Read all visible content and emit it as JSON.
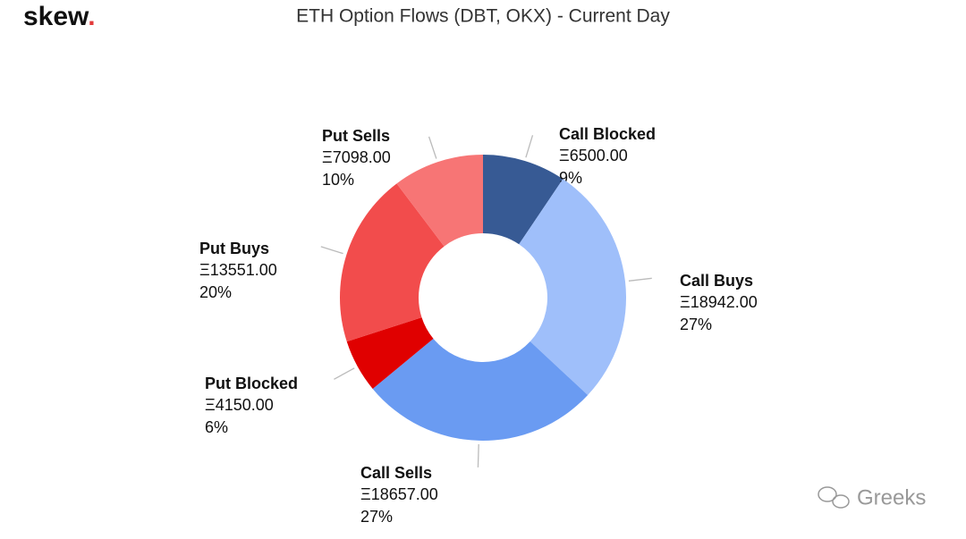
{
  "chart_data": {
    "type": "donut",
    "title": "ETH Option Flows (DBT, OKX) - Current Day",
    "logo": "skew",
    "logo_dot": ".",
    "watermark": "Greeks",
    "categories": [
      "Call Blocked",
      "Call Buys",
      "Call Sells",
      "Put Blocked",
      "Put Buys",
      "Put Sells"
    ],
    "values": [
      6500,
      18942,
      18657,
      4150,
      13551,
      7098
    ],
    "value_labels": [
      "Ξ6500.00",
      "Ξ18942.00",
      "Ξ18657.00",
      "Ξ4150.00",
      "Ξ13551.00",
      "Ξ7098.00"
    ],
    "percent_labels": [
      "9%",
      "27%",
      "27%",
      "6%",
      "20%",
      "10%"
    ],
    "colors": [
      "#375a94",
      "#9fbffa",
      "#6a9bf2",
      "#e00000",
      "#f24c4c",
      "#f77575"
    ]
  }
}
